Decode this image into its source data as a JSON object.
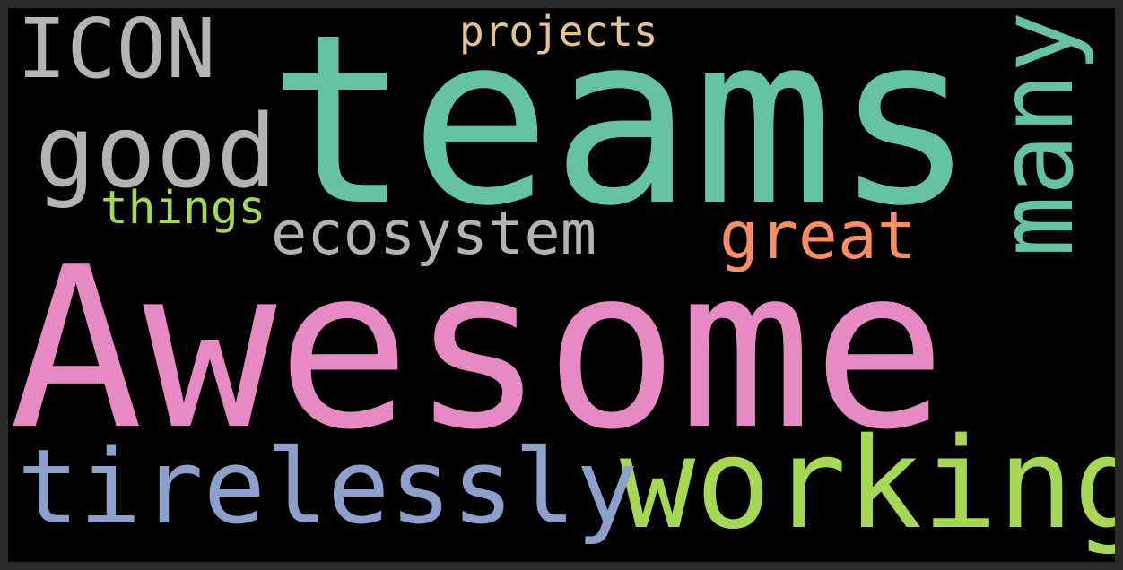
{
  "background_color": "#000000",
  "frame_color": "#2b2b2b",
  "words": [
    {
      "id": "awesome",
      "text": "Awesome",
      "color": "#e78ac3",
      "rotated": false
    },
    {
      "id": "teams",
      "text": "teams",
      "color": "#66c2a5",
      "rotated": false
    },
    {
      "id": "working",
      "text": "working",
      "color": "#a6d854",
      "rotated": false
    },
    {
      "id": "tirelessly",
      "text": "tirelessly",
      "color": "#8da0cb",
      "rotated": false
    },
    {
      "id": "icon",
      "text": "ICON",
      "color": "#b3b3b3",
      "rotated": false
    },
    {
      "id": "good",
      "text": "good",
      "color": "#b3b3b3",
      "rotated": false
    },
    {
      "id": "many",
      "text": "many",
      "color": "#66c2a5",
      "rotated": true
    },
    {
      "id": "ecosystem",
      "text": "ecosystem",
      "color": "#b3b3b3",
      "rotated": false
    },
    {
      "id": "great",
      "text": "great",
      "color": "#fc8d62",
      "rotated": false
    },
    {
      "id": "things",
      "text": "things",
      "color": "#a6d854",
      "rotated": false
    },
    {
      "id": "projects",
      "text": "projects",
      "color": "#e5c494",
      "rotated": false
    }
  ]
}
